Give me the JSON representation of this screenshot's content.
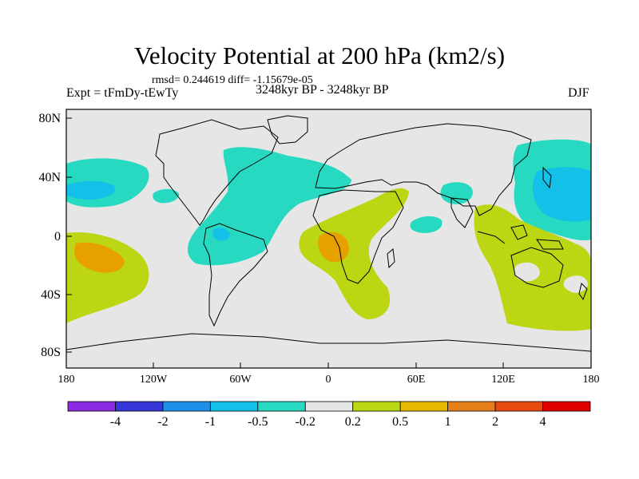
{
  "title": "Velocity Potential at 200 hPa (km2/s)",
  "stats": "rmsd= 0.244619 diff= -1.15679e-05",
  "left_label": "Expt = tFmDy-tEwTy",
  "center_label": "3248kyr BP - 3248kyr BP",
  "right_label": "DJF",
  "lat_labels": [
    "80N",
    "40N",
    "0",
    "40S",
    "80S"
  ],
  "lon_labels": [
    "180",
    "120W",
    "60W",
    "0",
    "60E",
    "120E",
    "180"
  ],
  "colorbar": {
    "labels": [
      "-4",
      "-2",
      "-1",
      "-0.5",
      "-0.2",
      "0.2",
      "0.5",
      "1",
      "2",
      "4"
    ],
    "colors": [
      "#8a2be2",
      "#3535d8",
      "#1e90e8",
      "#12c0e8",
      "#26d9c0",
      "#e6e6e6",
      "#bcd614",
      "#e6b800",
      "#e67e1a",
      "#e84a10",
      "#e00000"
    ]
  },
  "palette": {
    "neutral": "#e6e6e6",
    "teal": "#26d9c0",
    "lightblue": "#12c0e8",
    "olive": "#bcd614",
    "orange": "#e6a000"
  }
}
